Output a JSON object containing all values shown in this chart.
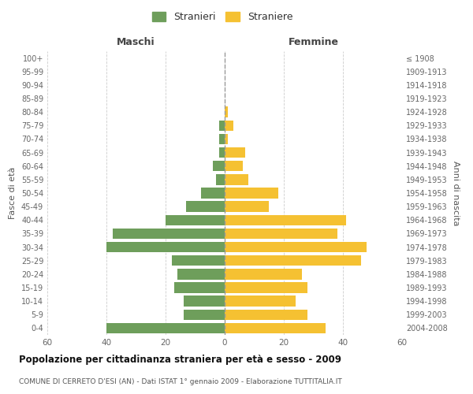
{
  "age_groups": [
    "0-4",
    "5-9",
    "10-14",
    "15-19",
    "20-24",
    "25-29",
    "30-34",
    "35-39",
    "40-44",
    "45-49",
    "50-54",
    "55-59",
    "60-64",
    "65-69",
    "70-74",
    "75-79",
    "80-84",
    "85-89",
    "90-94",
    "95-99",
    "100+"
  ],
  "birth_years": [
    "2004-2008",
    "1999-2003",
    "1994-1998",
    "1989-1993",
    "1984-1988",
    "1979-1983",
    "1974-1978",
    "1969-1973",
    "1964-1968",
    "1959-1963",
    "1954-1958",
    "1949-1953",
    "1944-1948",
    "1939-1943",
    "1934-1938",
    "1929-1933",
    "1924-1928",
    "1919-1923",
    "1914-1918",
    "1909-1913",
    "≤ 1908"
  ],
  "maschi": [
    40,
    14,
    14,
    17,
    16,
    18,
    40,
    38,
    20,
    13,
    8,
    3,
    4,
    2,
    2,
    2,
    0,
    0,
    0,
    0,
    0
  ],
  "femmine": [
    34,
    28,
    24,
    28,
    26,
    46,
    48,
    38,
    41,
    15,
    18,
    8,
    6,
    7,
    1,
    3,
    1,
    0,
    0,
    0,
    0
  ],
  "maschi_color": "#6e9e5b",
  "femmine_color": "#f5c132",
  "title": "Popolazione per cittadinanza straniera per età e sesso - 2009",
  "subtitle": "COMUNE DI CERRETO D'ESI (AN) - Dati ISTAT 1° gennaio 2009 - Elaborazione TUTTITALIA.IT",
  "ylabel_left": "Fasce di età",
  "ylabel_right": "Anni di nascita",
  "label_maschi": "Maschi",
  "label_femmine": "Femmine",
  "legend_stranieri": "Stranieri",
  "legend_straniere": "Straniere",
  "xlim": 60,
  "background_color": "#ffffff",
  "grid_color": "#cccccc"
}
